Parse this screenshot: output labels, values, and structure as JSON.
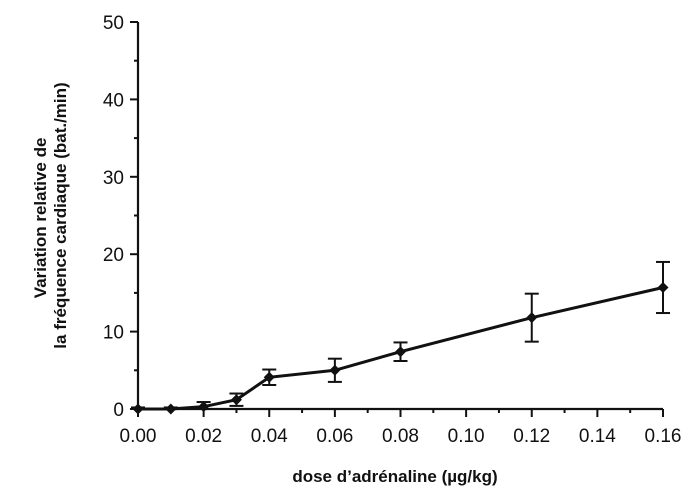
{
  "chart_data": {
    "type": "line",
    "title": "",
    "xlabel": "dose d’adrénaline (µg/kg)",
    "ylabel_lines": [
      "Variation relative de",
      "la fréquence cardiaque (bat./min)"
    ],
    "xlim": [
      0,
      0.16
    ],
    "ylim": [
      0,
      50
    ],
    "grid": false,
    "x_ticks": [
      0.0,
      0.02,
      0.04,
      0.06,
      0.08,
      0.1,
      0.12,
      0.14,
      0.16
    ],
    "x_tick_labels": [
      "0.00",
      "0.02",
      "0.04",
      "0.06",
      "0.08",
      "0.10",
      "0.12",
      "0.14",
      "0.16"
    ],
    "y_ticks": [
      0,
      10,
      20,
      30,
      40,
      50
    ],
    "y_tick_labels": [
      "0",
      "10",
      "20",
      "30",
      "40",
      "50"
    ],
    "x_minor_ticks": [
      0.01,
      0.03,
      0.05,
      0.07,
      0.09,
      0.11,
      0.13,
      0.15
    ],
    "y_minor_ticks": [
      5,
      15,
      25,
      35,
      45
    ],
    "series": [
      {
        "x": [
          0.0,
          0.01,
          0.02,
          0.03,
          0.04,
          0.06,
          0.08,
          0.12,
          0.16
        ],
        "y": [
          0.0,
          0.0,
          0.3,
          1.2,
          4.1,
          5.0,
          7.4,
          11.8,
          15.7
        ],
        "error": [
          0.2,
          0.2,
          0.6,
          0.8,
          1.0,
          1.5,
          1.2,
          3.1,
          3.3
        ]
      }
    ]
  }
}
